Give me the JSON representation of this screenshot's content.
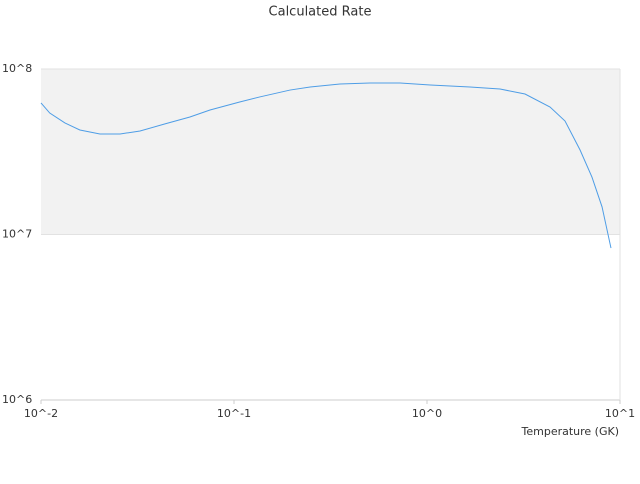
{
  "chart_data": {
    "type": "line",
    "title": "Calculated Rate",
    "x_label": "Temperature (GK)",
    "log_x": true,
    "log_y": true,
    "grid": true,
    "band_color": "#f2f2f2",
    "xlim": [
      0.01,
      10
    ],
    "ylim": [
      1000000,
      100000000
    ],
    "xticks": [
      {
        "value": 0.01,
        "label": "10^-2"
      },
      {
        "value": 0.1,
        "label": "10^-1"
      },
      {
        "value": 1,
        "label": "10^0"
      },
      {
        "value": 10,
        "label": "10^1"
      }
    ],
    "yticks": [
      {
        "value": 1000000,
        "label": "10^6"
      },
      {
        "value": 10000000,
        "label": "10^7"
      },
      {
        "value": 100000000,
        "label": "10^8"
      }
    ],
    "series": [
      {
        "color": "#4e9de6",
        "x": [
          0.01,
          0.0111,
          0.0133,
          0.0159,
          0.0202,
          0.0257,
          0.0326,
          0.0439,
          0.0591,
          0.0751,
          0.107,
          0.136,
          0.195,
          0.248,
          0.354,
          0.507,
          0.725,
          1.04,
          1.67,
          2.39,
          3.22,
          4.34,
          5.19,
          6.21,
          7.16,
          8.07,
          8.98
        ],
        "values": [
          62400000,
          54200000,
          47200000,
          42800000,
          40500000,
          40500000,
          42200000,
          46600000,
          51300000,
          56500000,
          63200000,
          67800000,
          74600000,
          77800000,
          81100000,
          82300000,
          82300000,
          80000000,
          77800000,
          75700000,
          70600000,
          58900000,
          48500000,
          32400000,
          22200000,
          14700000,
          8280000
        ]
      }
    ]
  }
}
